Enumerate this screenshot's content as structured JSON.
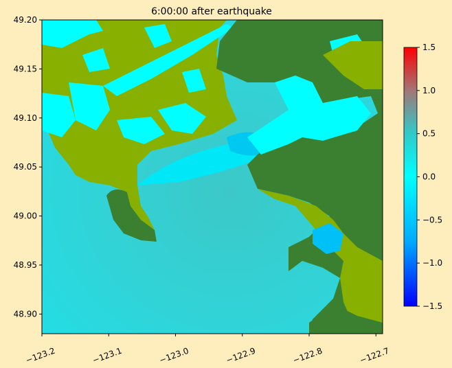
{
  "chart_data": {
    "type": "heatmap",
    "title": "6:00:00 after earthquake",
    "xlabel": "",
    "ylabel": "",
    "xlim": [
      -123.2,
      -122.69
    ],
    "ylim": [
      48.88,
      49.2
    ],
    "x_ticks": [
      -123.2,
      -123.1,
      -123.0,
      -122.9,
      -122.8,
      -122.7
    ],
    "x_tick_labels": [
      "−123.2",
      "−123.1",
      "−123.0",
      "−122.9",
      "−122.8",
      "−122.7"
    ],
    "y_ticks": [
      48.9,
      48.95,
      49.0,
      49.05,
      49.1,
      49.15,
      49.2
    ],
    "y_tick_labels": [
      "48.90",
      "48.95",
      "49.00",
      "49.05",
      "49.10",
      "49.15",
      "49.20"
    ],
    "colorbar": {
      "range": [
        -1.5,
        1.5
      ],
      "ticks": [
        -1.5,
        -1.0,
        -0.5,
        0.0,
        0.5,
        1.0,
        1.5
      ],
      "tick_labels": [
        "−1.5",
        "−1.0",
        "−0.5",
        "0.0",
        "0.5",
        "1.0",
        "1.5"
      ],
      "colormap": [
        "#0000ff",
        "#00aaff",
        "#00ffff",
        "#33cccc",
        "#a08080",
        "#ff0000"
      ]
    },
    "surface_colors": {
      "water": "#22dde0",
      "low_land": "#88b000",
      "high_land": "#3a8030",
      "flooded": "#00ffff"
    }
  }
}
